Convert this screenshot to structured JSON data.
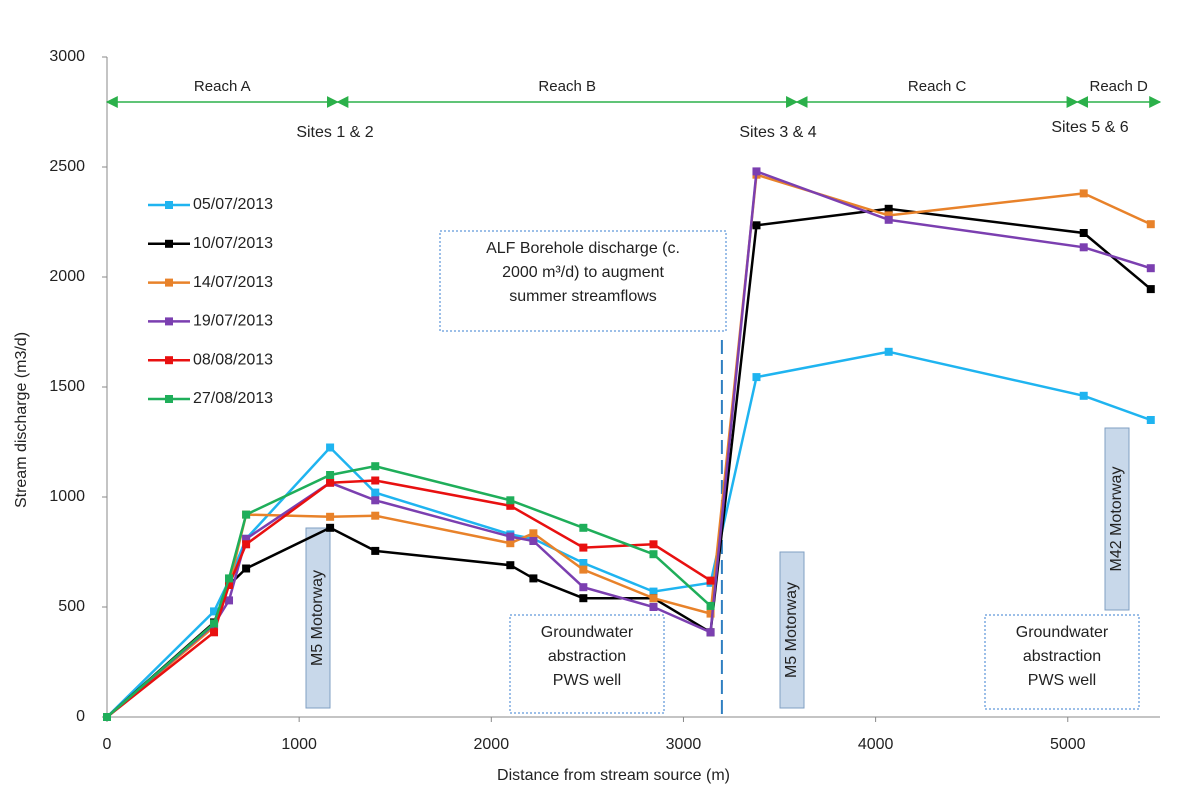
{
  "chart_data": {
    "type": "line",
    "x_label": "Distance from stream source  (m)",
    "y_label": "Stream discharge  (m3/d)",
    "xlim": [
      0,
      5480
    ],
    "ylim": [
      0,
      3000
    ],
    "xticks": [
      0,
      1000,
      2000,
      3000,
      4000,
      5000
    ],
    "yticks": [
      0,
      500,
      1000,
      1500,
      2000,
      2500,
      3000
    ],
    "grid": false,
    "series": [
      {
        "name": "05/07/2013",
        "color": "#1fb4f0",
        "x": [
          0,
          557,
          635,
          724,
          1161,
          1396,
          2099,
          2219,
          2479,
          2844,
          3141,
          3380,
          4068,
          5083,
          5432
        ],
        "values": [
          0,
          480,
          620,
          810,
          1225,
          1020,
          830,
          810,
          700,
          570,
          610,
          1545,
          1660,
          1460,
          1350
        ]
      },
      {
        "name": "10/07/2013",
        "color": "#000000",
        "x": [
          0,
          557,
          635,
          724,
          1161,
          1396,
          2099,
          2219,
          2479,
          2844,
          3141,
          3380,
          4068,
          5083,
          5432
        ],
        "values": [
          0,
          430,
          600,
          675,
          860,
          755,
          690,
          630,
          540,
          540,
          385,
          2235,
          2310,
          2200,
          1945
        ]
      },
      {
        "name": "14/07/2013",
        "color": "#e8822a",
        "x": [
          0,
          557,
          635,
          724,
          1161,
          1396,
          2099,
          2219,
          2479,
          2844,
          3141,
          3380,
          4068,
          5083,
          5432
        ],
        "values": [
          0,
          410,
          600,
          920,
          910,
          915,
          790,
          835,
          670,
          540,
          470,
          2465,
          2280,
          2380,
          2240
        ]
      },
      {
        "name": "19/07/2013",
        "color": "#7b3fb0",
        "x": [
          0,
          557,
          635,
          724,
          1161,
          1396,
          2099,
          2219,
          2479,
          2844,
          3141,
          3380,
          4068,
          5083,
          5432
        ],
        "values": [
          0,
          420,
          530,
          810,
          1065,
          985,
          820,
          800,
          590,
          500,
          385,
          2480,
          2260,
          2135,
          2040
        ]
      },
      {
        "name": "08/08/2013",
        "color": "#e81010",
        "x": [
          0,
          557,
          635,
          724,
          1161,
          1396,
          2099,
          2479,
          2844,
          3141
        ],
        "values": [
          0,
          385,
          600,
          785,
          1065,
          1075,
          960,
          770,
          785,
          620
        ]
      },
      {
        "name": "27/08/2013",
        "color": "#1fae5a",
        "x": [
          0,
          557,
          635,
          724,
          1161,
          1396,
          2099,
          2479,
          2844,
          3141
        ],
        "values": [
          0,
          425,
          630,
          920,
          1100,
          1140,
          985,
          860,
          740,
          505
        ]
      }
    ],
    "reaches": [
      {
        "label": "Reach A",
        "from": 0,
        "to": 1200
      },
      {
        "label": "Reach B",
        "from": 1200,
        "to": 3590
      },
      {
        "label": "Reach C",
        "from": 3590,
        "to": 5050
      },
      {
        "label": "Reach D",
        "from": 5050,
        "to": 5480
      }
    ],
    "sites": [
      "Sites 1 & 2",
      "Sites 3  & 4",
      "Sites 5 & 6"
    ],
    "borehole_line": 3200,
    "borehole_note": [
      "ALF Borehole discharge (c.",
      "2000 m³/d) to augment",
      "summer streamflows"
    ],
    "abstraction_note": [
      "Groundwater",
      "abstraction",
      "PWS well"
    ],
    "motorways": [
      "M5 Motorway",
      "M5 Motorway",
      "M42  Motorway"
    ]
  }
}
